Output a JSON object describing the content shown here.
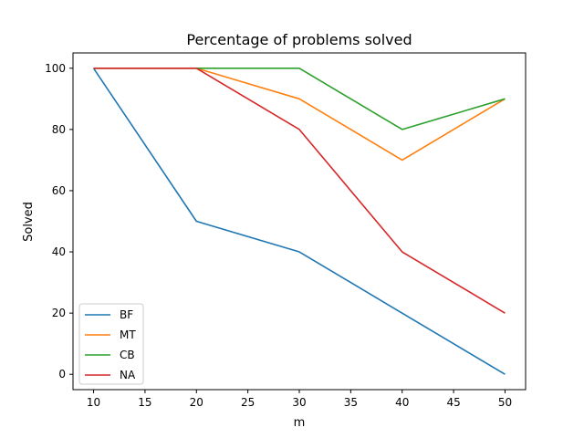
{
  "chart_data": {
    "type": "line",
    "title": "Percentage of problems solved",
    "xlabel": "m",
    "ylabel": "Solved",
    "x": [
      10,
      20,
      30,
      40,
      50
    ],
    "xlim": [
      8,
      52
    ],
    "ylim": [
      -5,
      105
    ],
    "xticks": [
      10,
      15,
      20,
      25,
      30,
      35,
      40,
      45,
      50
    ],
    "yticks": [
      0,
      20,
      40,
      60,
      80,
      100
    ],
    "grid": false,
    "legend_position": "lower-left",
    "series": [
      {
        "name": "BF",
        "color": "#1f77b4",
        "values": [
          100,
          50,
          40,
          20,
          0
        ]
      },
      {
        "name": "MT",
        "color": "#ff7f0e",
        "values": [
          100,
          100,
          90,
          70,
          90
        ]
      },
      {
        "name": "CB",
        "color": "#2ca02c",
        "values": [
          100,
          100,
          100,
          80,
          90
        ]
      },
      {
        "name": "NA",
        "color": "#d62728",
        "values": [
          100,
          100,
          80,
          40,
          20
        ]
      }
    ]
  }
}
